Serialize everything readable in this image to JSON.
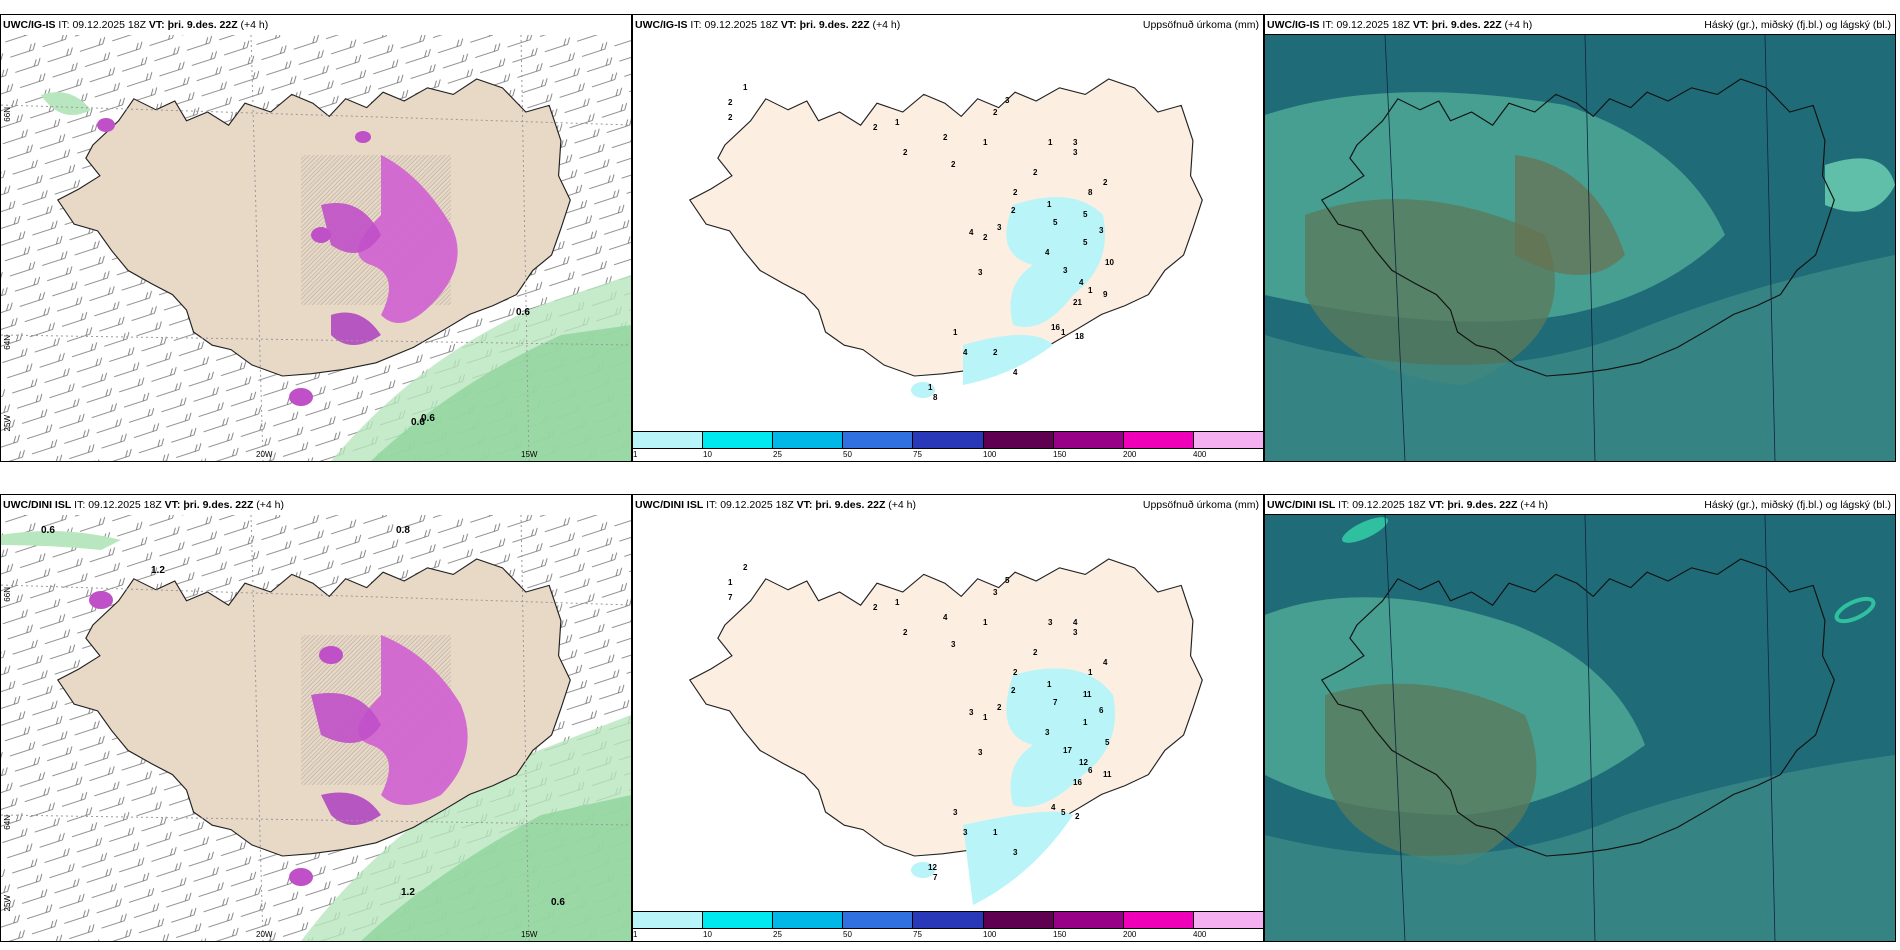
{
  "panels": {
    "p1": {
      "model": "UWC/IG-IS",
      "it_label": "IT:",
      "it": "09.12.2025 18Z",
      "vt_label": "VT:",
      "vt": "þri. 9.des. 22Z",
      "lead": "(+4 h)",
      "right_title": ""
    },
    "p2": {
      "model": "UWC/IG-IS",
      "it_label": "IT:",
      "it": "09.12.2025 18Z",
      "vt_label": "VT:",
      "vt": "þri. 9.des. 22Z",
      "lead": "(+4 h)",
      "right_title": "Uppsöfnuð úrkoma (mm)"
    },
    "p3": {
      "model": "UWC/IG-IS",
      "it_label": "IT:",
      "it": "09.12.2025 18Z",
      "vt_label": "VT:",
      "vt": "þri. 9.des. 22Z",
      "lead": "(+4 h)",
      "right_title": "Háský (gr.), miðský (fj.bl.) og lágský (bl.)"
    },
    "p4": {
      "model": "UWC/DINI ISL",
      "it_label": "IT:",
      "it": "09.12.2025 18Z",
      "vt_label": "VT:",
      "vt": "þri. 9.des. 22Z",
      "lead": "(+4 h)",
      "right_title": ""
    },
    "p5": {
      "model": "UWC/DINI ISL",
      "it_label": "IT:",
      "it": "09.12.2025 18Z",
      "vt_label": "VT:",
      "vt": "þri. 9.des. 22Z",
      "lead": "(+4 h)",
      "right_title": "Uppsöfnuð úrkoma (mm)"
    },
    "p6": {
      "model": "UWC/DINI ISL",
      "it_label": "IT:",
      "it": "09.12.2025 18Z",
      "vt_label": "VT:",
      "vt": "þri. 9.des. 22Z",
      "lead": "(+4 h)",
      "right_title": "Háský (gr.), miðský (fj.bl.) og lágský (bl.)"
    }
  },
  "axes": {
    "lon1": "20W",
    "lon2": "15W",
    "lat66": "66N",
    "lat64": "64N",
    "lon25": "25W"
  },
  "legend": {
    "labels": [
      "1",
      "10",
      "25",
      "50",
      "75",
      "100",
      "150",
      "200",
      "400"
    ],
    "colors": [
      "#b8f4f8",
      "#00e8f0",
      "#00b8e8",
      "#3070e0",
      "#2838b8",
      "#600050",
      "#980088",
      "#f000b8",
      "#f4b0f0"
    ]
  },
  "precip_labels": {
    "p2": [
      "2",
      "1",
      "2",
      "2",
      "1",
      "2",
      "2",
      "3",
      "1",
      "2",
      "2",
      "1",
      "3",
      "3",
      "2",
      "2",
      "2",
      "3",
      "2",
      "1",
      "4",
      "3",
      "5",
      "4",
      "5",
      "3",
      "8",
      "2",
      "5",
      "3",
      "4",
      "10",
      "1",
      "9",
      "21",
      "16",
      "1",
      "18",
      "8",
      "2",
      "4",
      "1",
      "4",
      "1"
    ],
    "p5": [
      "1",
      "2",
      "7",
      "2",
      "1",
      "2",
      "3",
      "5",
      "1",
      "4",
      "3",
      "3",
      "4",
      "3",
      "2",
      "2",
      "2",
      "2",
      "1",
      "1",
      "3",
      "3",
      "7",
      "3",
      "1",
      "17",
      "1",
      "4",
      "11",
      "6",
      "12",
      "5",
      "6",
      "11",
      "16",
      "4",
      "5",
      "2",
      "7",
      "1",
      "3",
      "3",
      "3",
      "12"
    ]
  },
  "wind_labels": {
    "p1": [
      "0.6",
      "0.6",
      "0.6"
    ],
    "p4": [
      "0.6",
      "0.8",
      "1.2",
      "1.2",
      "0.6"
    ]
  },
  "colors": {
    "land": "#f2e4d6",
    "land_precip": "#fbeee2",
    "sea": "#ffffff",
    "magenta": "#d060d0",
    "green": "#9fd9a8",
    "cloud_dark": "#1f6c78",
    "cloud_mid": "#4aa592",
    "cloud_low": "#6a7a58"
  }
}
